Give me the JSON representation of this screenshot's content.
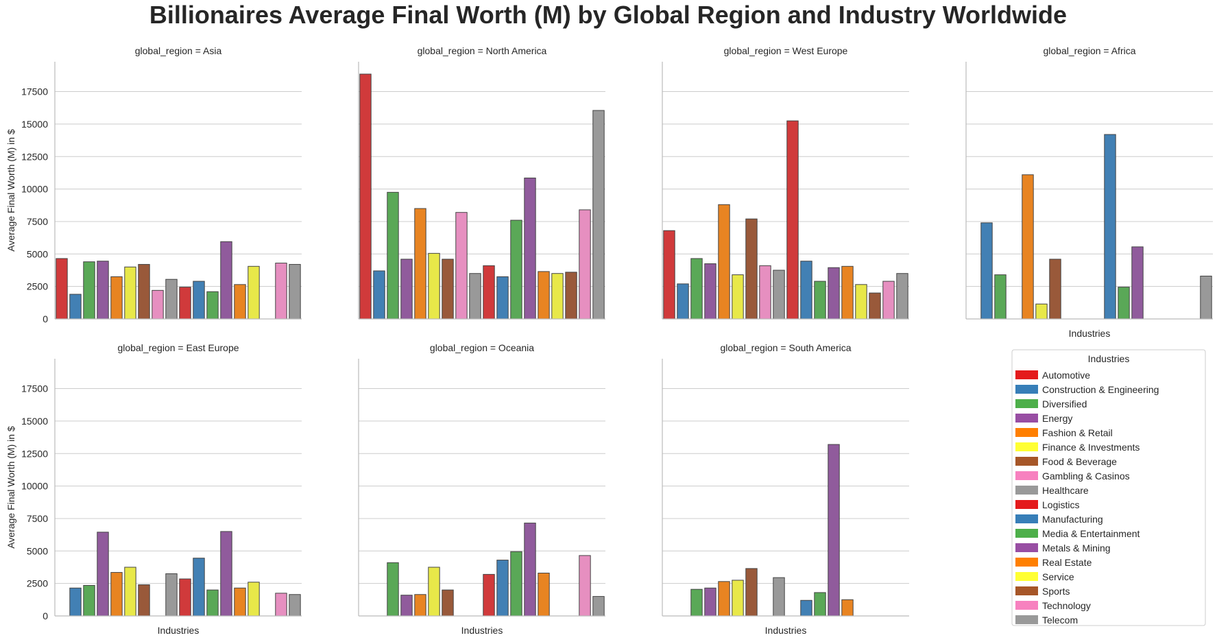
{
  "chart_data": {
    "type": "bar",
    "title": "Billionaires Average Final Worth (M) by Global Region and Industry Worldwide",
    "ylabel": "Average Final Worth (M) in $",
    "xlabel": "Industries",
    "ylim": [
      0,
      19800
    ],
    "yticks": [
      0,
      2500,
      5000,
      7500,
      10000,
      12500,
      15000,
      17500
    ],
    "grid": true,
    "legend_title": "Industries",
    "legend_position": "lower-right",
    "categories": [
      "Automotive",
      "Construction & Engineering",
      "Diversified",
      "Energy",
      "Fashion & Retail",
      "Finance & Investments",
      "Food & Beverage",
      "Gambling & Casinos",
      "Healthcare",
      "Logistics",
      "Manufacturing",
      "Media & Entertainment",
      "Metals & Mining",
      "Real Estate",
      "Service",
      "Sports",
      "Technology",
      "Telecom"
    ],
    "legend_colors": [
      "#e41a1c",
      "#377eb8",
      "#4daf4a",
      "#984ea3",
      "#ff7f00",
      "#ffff33",
      "#a65628",
      "#f781bf",
      "#999999",
      "#e41a1c",
      "#377eb8",
      "#4daf4a",
      "#984ea3",
      "#ff7f00",
      "#ffff33",
      "#a65628",
      "#f781bf",
      "#999999"
    ],
    "bar_colors": [
      "#d03a3b",
      "#4280b4",
      "#5aa857",
      "#905b9c",
      "#e88422",
      "#e8e849",
      "#99593a",
      "#e68fc0",
      "#999999",
      "#d03a3b",
      "#4280b4",
      "#5aa857",
      "#905b9c",
      "#e88422",
      "#e8e849",
      "#99593a",
      "#e68fc0",
      "#999999"
    ],
    "panels": [
      {
        "title": "global_region = Asia",
        "values": [
          4650,
          1900,
          4400,
          4450,
          3250,
          4000,
          4200,
          2200,
          3050,
          2450,
          2900,
          2100,
          5950,
          2650,
          4050,
          null,
          4300,
          4200
        ]
      },
      {
        "title": "global_region = North America",
        "values": [
          18850,
          3700,
          9750,
          4600,
          8500,
          5050,
          4600,
          8200,
          3500,
          4100,
          3250,
          7600,
          10850,
          3650,
          3500,
          3600,
          8400,
          16050
        ]
      },
      {
        "title": "global_region = West Europe",
        "values": [
          6800,
          2700,
          4650,
          4250,
          8800,
          3400,
          7700,
          4100,
          3750,
          15250,
          4450,
          2900,
          3950,
          4050,
          2650,
          2000,
          2900,
          3500
        ]
      },
      {
        "title": "global_region = Africa",
        "values": [
          null,
          7400,
          3400,
          null,
          11100,
          1150,
          4600,
          null,
          null,
          null,
          14200,
          2450,
          5550,
          null,
          null,
          null,
          null,
          3300
        ]
      },
      {
        "title": "global_region = East Europe",
        "values": [
          null,
          2150,
          2350,
          6450,
          3350,
          3750,
          2400,
          null,
          3250,
          2850,
          4450,
          2000,
          6500,
          2150,
          2600,
          null,
          1750,
          1650
        ]
      },
      {
        "title": "global_region = Oceania",
        "values": [
          null,
          null,
          4100,
          1600,
          1650,
          3750,
          2000,
          null,
          null,
          3200,
          4300,
          4950,
          7150,
          3300,
          null,
          null,
          4650,
          1500
        ]
      },
      {
        "title": "global_region = South America",
        "values": [
          null,
          null,
          2050,
          2150,
          2650,
          2750,
          3650,
          null,
          2950,
          null,
          1200,
          1800,
          13200,
          1250,
          null,
          null,
          null,
          null
        ]
      }
    ]
  }
}
